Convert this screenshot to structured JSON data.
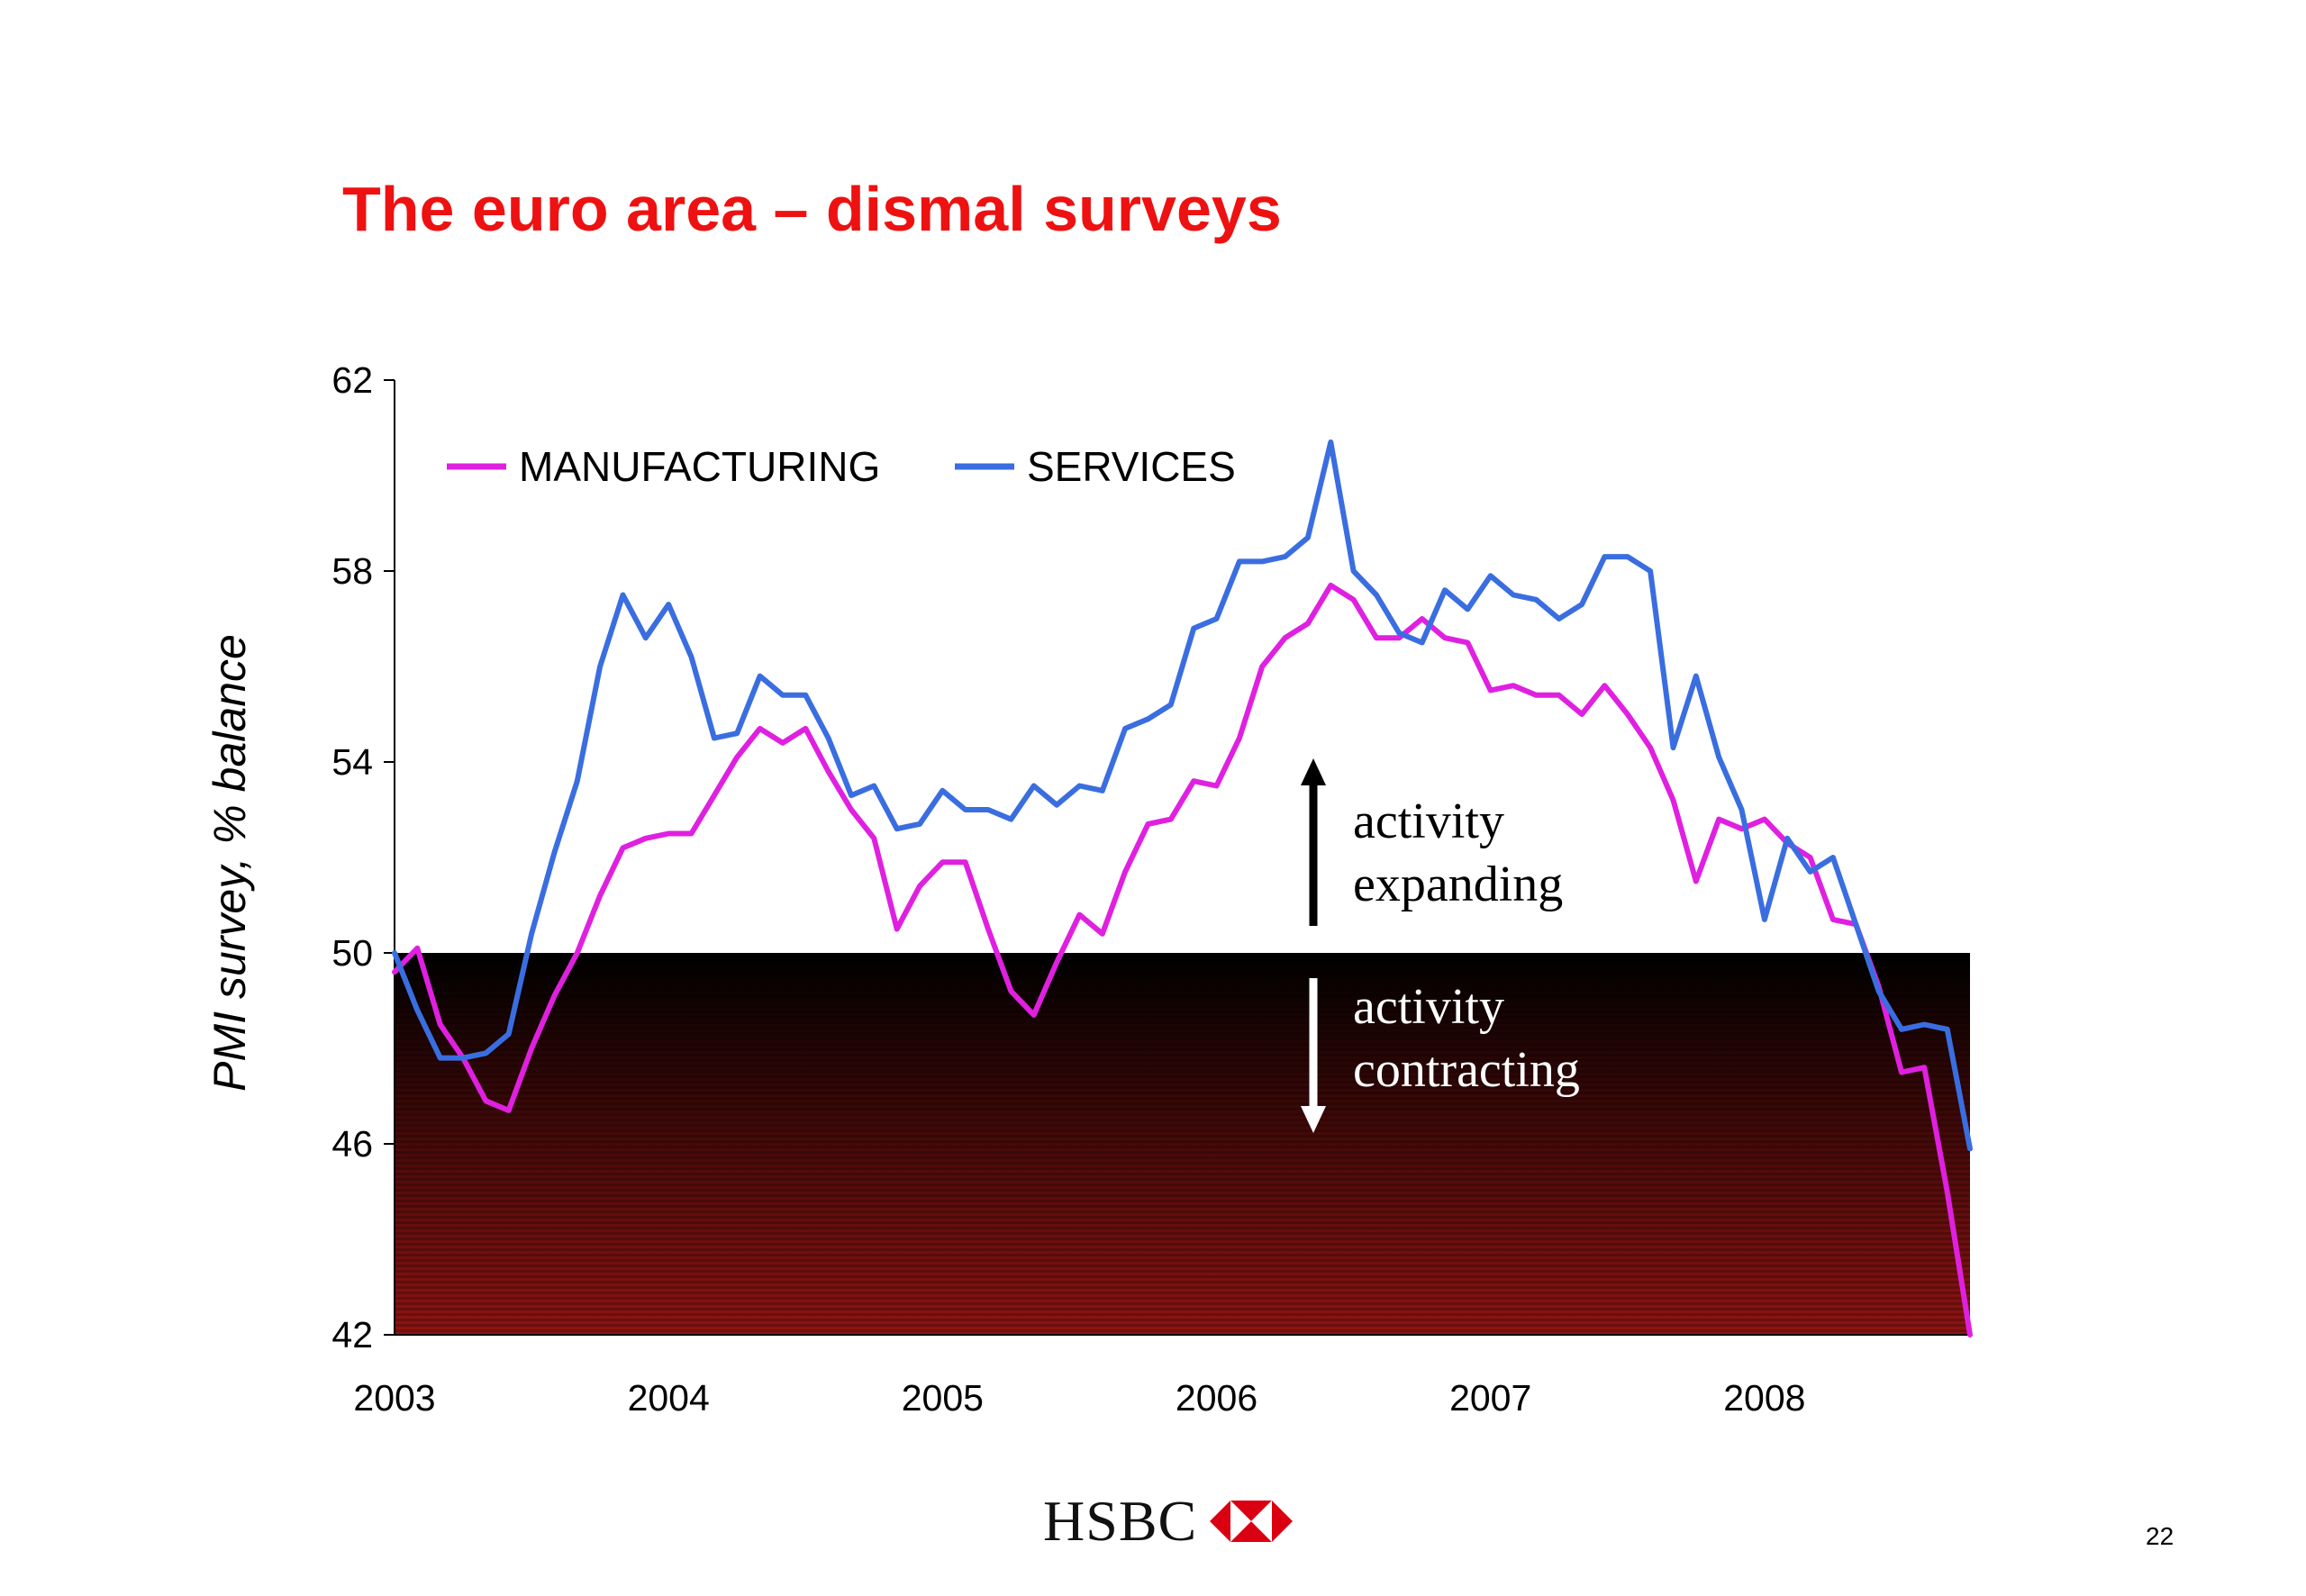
{
  "title": "The euro area – dismal surveys",
  "page_number": "22",
  "footer": {
    "logo_text": "HSBC"
  },
  "annotations": {
    "expanding": [
      "activity",
      "expanding"
    ],
    "contracting": [
      "activity",
      "contracting"
    ]
  },
  "colors": {
    "manufacturing": "#e020e0",
    "services": "#3a6ee0",
    "title": "#ee1111"
  },
  "chart_data": {
    "type": "line",
    "title": "The euro area – dismal surveys",
    "xlabel": "",
    "ylabel": "PMI survey, % balance",
    "ylim": [
      42,
      62
    ],
    "yticks": [
      42,
      46,
      50,
      54,
      58,
      62
    ],
    "xlim": [
      2003,
      2008.75
    ],
    "xticks": [
      {
        "label": "2003",
        "value": 2003
      },
      {
        "label": "2004",
        "value": 2004
      },
      {
        "label": "2005",
        "value": 2005
      },
      {
        "label": "2006",
        "value": 2006
      },
      {
        "label": "2007",
        "value": 2007
      },
      {
        "label": "2008",
        "value": 2008
      }
    ],
    "legend": "top-left",
    "grid": false,
    "x_start": "2003-01",
    "frequency": "monthly",
    "shaded_region": {
      "from": 42,
      "to": 50
    },
    "series": [
      {
        "name": "MANUFACTURING",
        "values": [
          49.6,
          50.1,
          48.5,
          47.8,
          46.9,
          46.7,
          48.0,
          49.1,
          50.0,
          51.2,
          52.2,
          52.4,
          52.5,
          52.5,
          53.3,
          54.1,
          54.7,
          54.4,
          54.7,
          53.8,
          53.0,
          52.4,
          50.5,
          51.4,
          51.9,
          51.9,
          50.5,
          49.2,
          48.7,
          49.8,
          50.8,
          50.4,
          51.7,
          52.7,
          52.8,
          53.6,
          53.5,
          54.5,
          56.0,
          56.6,
          56.9,
          57.7,
          57.4,
          56.6,
          56.6,
          57.0,
          56.6,
          56.5,
          55.5,
          55.6,
          55.4,
          55.4,
          55.0,
          55.6,
          55.0,
          54.3,
          53.2,
          51.5,
          52.8,
          52.6,
          52.8,
          52.3,
          52.0,
          50.7,
          50.6,
          49.3,
          47.5,
          47.6,
          45.0,
          42.0
        ]
      },
      {
        "name": "SERVICES",
        "values": [
          50.0,
          48.8,
          47.8,
          47.8,
          47.9,
          48.3,
          50.4,
          52.1,
          53.6,
          56.0,
          57.5,
          56.6,
          57.3,
          56.2,
          54.5,
          54.6,
          55.8,
          55.4,
          55.4,
          54.5,
          53.3,
          53.5,
          52.6,
          52.7,
          53.4,
          53.0,
          53.0,
          52.8,
          53.5,
          53.1,
          53.5,
          53.4,
          54.7,
          54.9,
          55.2,
          56.8,
          57.0,
          58.2,
          58.2,
          58.3,
          58.7,
          60.7,
          58.0,
          57.5,
          56.7,
          56.5,
          57.6,
          57.2,
          57.9,
          57.5,
          57.4,
          57.0,
          57.3,
          58.3,
          58.3,
          58.0,
          54.3,
          55.8,
          54.1,
          53.0,
          50.7,
          52.4,
          51.7,
          52.0,
          50.6,
          49.2,
          48.4,
          48.5,
          48.4,
          45.9
        ]
      }
    ]
  }
}
